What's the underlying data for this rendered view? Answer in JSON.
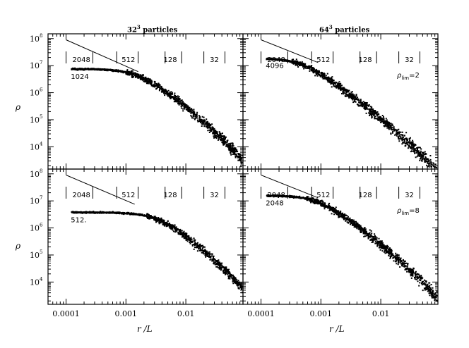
{
  "titles": {
    "left": {
      "text": "32",
      "sup": "3",
      "rest": " particles"
    },
    "right": {
      "text": "64",
      "sup": "3",
      "rest": " particles"
    }
  },
  "axis": {
    "xlabel": "r /L",
    "ylabel": "ρ",
    "x_ticks": [
      "0.0001",
      "0.001",
      "0.01"
    ],
    "y_ticks": [
      {
        "base": "10",
        "exp": "8"
      },
      {
        "base": "10",
        "exp": "7"
      },
      {
        "base": "10",
        "exp": "6"
      },
      {
        "base": "10",
        "exp": "5"
      },
      {
        "base": "10",
        "exp": "4"
      }
    ]
  },
  "chart_data": [
    {
      "type": "scatter",
      "panel": "top-left",
      "xscale": "log",
      "yscale": "log",
      "xlim": [
        5e-05,
        0.09
      ],
      "ylim": [
        1500,
        150000000
      ],
      "core_label": "1024",
      "core_density": 8000000,
      "core_end": 0.0014,
      "mark_labels": [
        "2048",
        "512",
        "128",
        "32"
      ],
      "mark_x": [
        0.0001,
        0.00028,
        0.0007,
        0.0016,
        0.0045,
        0.0085,
        0.02,
        0.045
      ],
      "label_x": [
        0.00018,
        0.0011,
        0.0055,
        0.03
      ],
      "line": {
        "x": [
          0.0001,
          0.0016
        ],
        "y": [
          90000000,
          6000000
        ]
      }
    },
    {
      "type": "scatter",
      "panel": "top-right",
      "xscale": "log",
      "yscale": "log",
      "xlim": [
        5e-05,
        0.09
      ],
      "ylim": [
        1500,
        150000000
      ],
      "core_label": "4096",
      "core_density": 20000000,
      "core_end": 0.00045,
      "annotation": {
        "base": "ρ",
        "sub": "lim",
        "rest": "=2"
      },
      "mark_labels": [
        "2048",
        "512",
        "128",
        "32"
      ],
      "mark_x": [
        0.0001,
        0.00028,
        0.0007,
        0.0016,
        0.0045,
        0.0085,
        0.02,
        0.045
      ],
      "label_x": [
        0.00018,
        0.0011,
        0.0055,
        0.03
      ],
      "line": {
        "x": [
          0.0001,
          0.0009
        ],
        "y": [
          90000000,
          13000000
        ]
      }
    },
    {
      "type": "scatter",
      "panel": "bottom-left",
      "xscale": "log",
      "yscale": "log",
      "xlim": [
        5e-05,
        0.09
      ],
      "ylim": [
        1500,
        150000000
      ],
      "core_label": "512.",
      "core_density": 4000000,
      "core_end": 0.003,
      "mark_labels": [
        "2048",
        "512",
        "128",
        "32"
      ],
      "mark_x": [
        0.0001,
        0.00028,
        0.0007,
        0.0016,
        0.0045,
        0.0085,
        0.02,
        0.045
      ],
      "label_x": [
        0.00018,
        0.0011,
        0.0055,
        0.03
      ],
      "line": {
        "x": [
          0.0001,
          0.0014
        ],
        "y": [
          90000000,
          7500000
        ]
      }
    },
    {
      "type": "scatter",
      "panel": "bottom-right",
      "xscale": "log",
      "yscale": "log",
      "xlim": [
        5e-05,
        0.09
      ],
      "ylim": [
        1500,
        150000000
      ],
      "core_label": "2048",
      "core_density": 17000000,
      "core_end": 0.0008,
      "annotation": {
        "base": "ρ",
        "sub": "lim",
        "rest": "=8"
      },
      "mark_labels": [
        "2048",
        "512",
        "128",
        "32"
      ],
      "mark_x": [
        0.0001,
        0.00028,
        0.0007,
        0.0016,
        0.0045,
        0.0085,
        0.02,
        0.045
      ],
      "label_x": [
        0.00018,
        0.0011,
        0.0055,
        0.03
      ],
      "line": {
        "x": [
          0.0001,
          0.0009
        ],
        "y": [
          90000000,
          13000000
        ]
      }
    }
  ]
}
